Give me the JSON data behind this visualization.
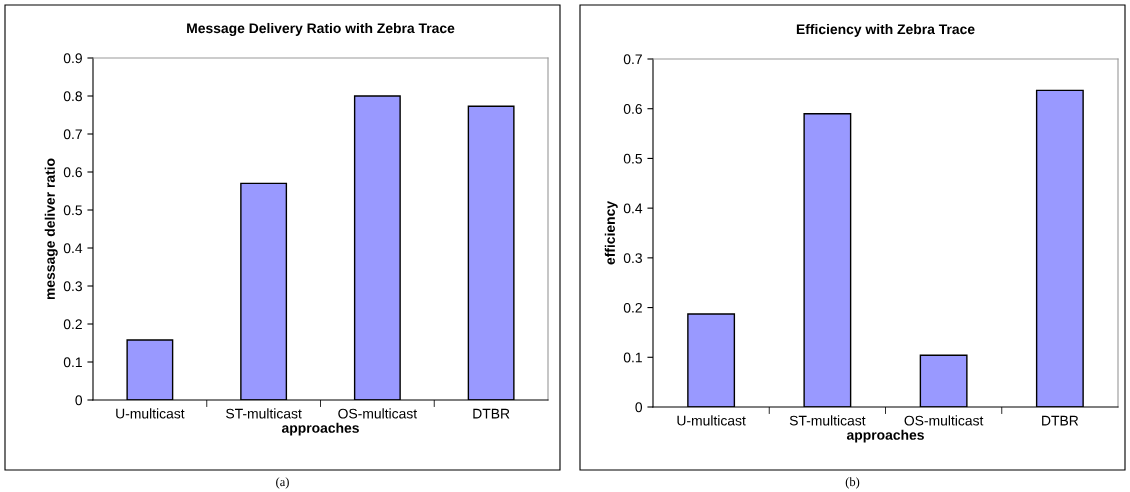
{
  "chart_data": [
    {
      "type": "bar",
      "title": "Message Delivery Ratio with Zebra Trace",
      "xlabel": "approaches",
      "ylabel": "message deliver ratio",
      "categories": [
        "U-multicast",
        "ST-multicast",
        "OS-multicast",
        "DTBR"
      ],
      "values": [
        0.158,
        0.57,
        0.8,
        0.773
      ],
      "color": "#9999ff",
      "ylim": [
        0,
        0.9
      ],
      "yticks": [
        {
          "value": 0,
          "label": "0"
        },
        0.1,
        0.2,
        0.3,
        0.4,
        0.5,
        0.6,
        0.7,
        0.8,
        0.9
      ],
      "grid": false,
      "annotations": [
        "(a)"
      ]
    },
    {
      "type": "bar",
      "title": "Efficiency with Zebra Trace",
      "xlabel": "approaches",
      "ylabel": "efficiency",
      "categories": [
        "U-multicast",
        "ST-multicast",
        "OS-multicast",
        "DTBR"
      ],
      "values": [
        0.187,
        0.59,
        0.104,
        0.637
      ],
      "color": "#9999ff",
      "ylim": [
        0,
        0.7
      ],
      "yticks": [
        {
          "value": 0,
          "label": "0"
        },
        0.1,
        0.2,
        0.3,
        0.4,
        0.5,
        0.6,
        0.7
      ],
      "grid": false,
      "annotations": [
        "(b)"
      ]
    }
  ]
}
